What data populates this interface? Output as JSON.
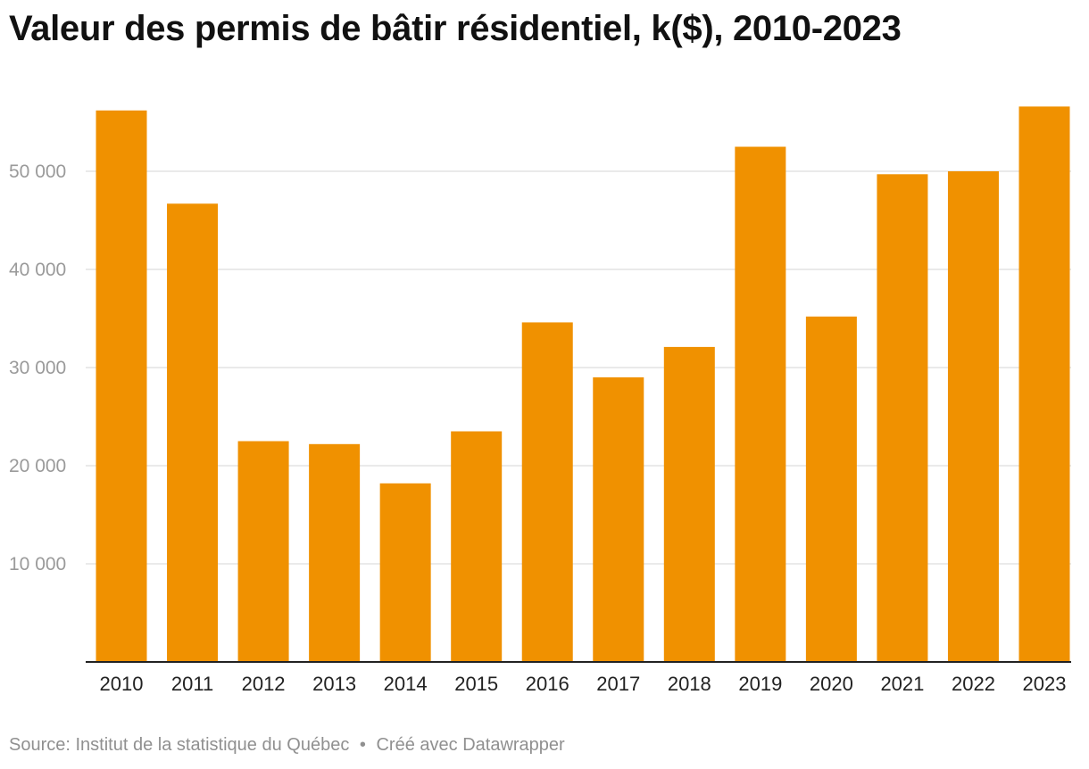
{
  "chart_data": {
    "type": "bar",
    "title": "Valeur des permis de bâtir résidentiel, k($), 2010-2023",
    "xlabel": "",
    "ylabel": "",
    "categories": [
      "2010",
      "2011",
      "2012",
      "2013",
      "2014",
      "2015",
      "2016",
      "2017",
      "2018",
      "2019",
      "2020",
      "2021",
      "2022",
      "2023"
    ],
    "values": [
      56200,
      46700,
      22500,
      22200,
      18200,
      23500,
      34600,
      29000,
      32100,
      52500,
      35200,
      49700,
      50000,
      56600
    ],
    "ylim": [
      0,
      60000
    ],
    "yticks": [
      10000,
      20000,
      30000,
      40000,
      50000
    ],
    "ytick_labels": [
      "10 000",
      "20 000",
      "30 000",
      "40 000",
      "50 000"
    ],
    "grid": true,
    "legend": "none",
    "bar_color": "#f09100",
    "grid_color": "#e4e4e4",
    "axis_color": "#222222"
  },
  "footer": {
    "source": "Source: Institut de la statistique du Québec",
    "separator": "•",
    "credit": "Créé avec Datawrapper"
  }
}
